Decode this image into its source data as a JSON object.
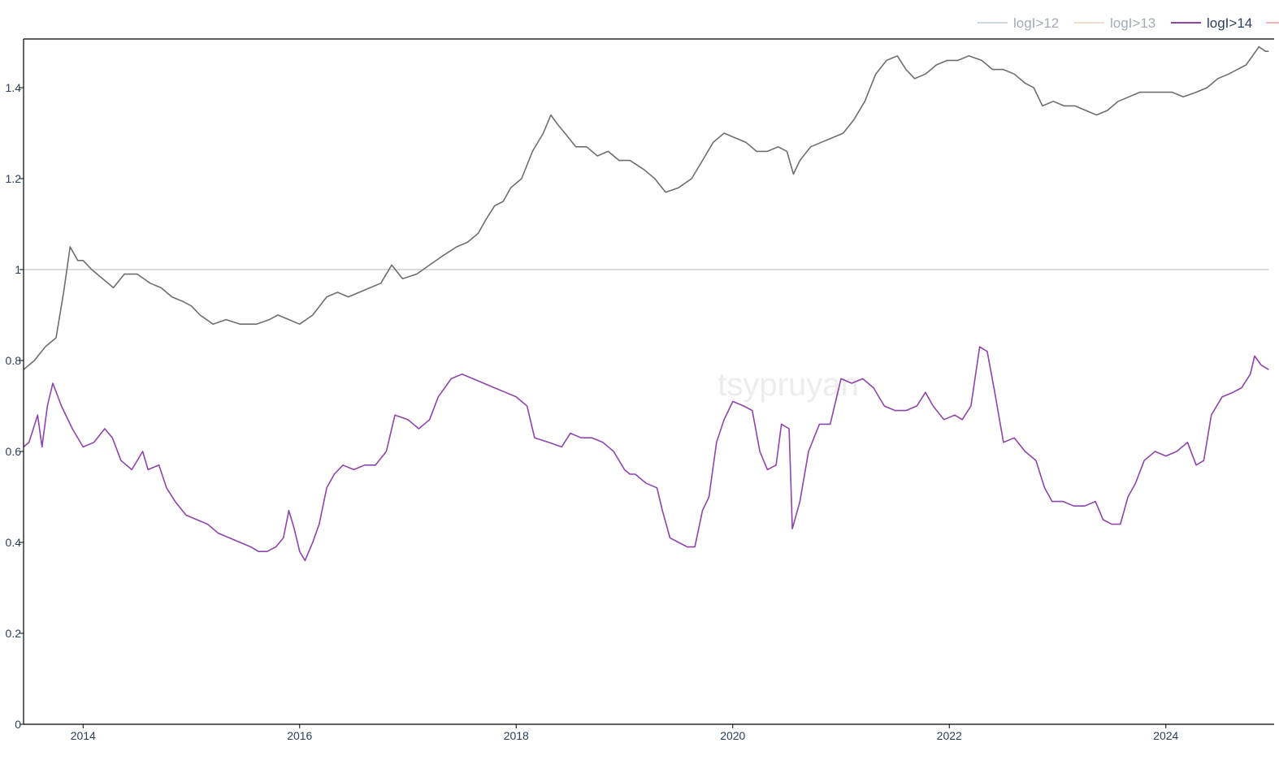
{
  "watermark": "tsypruyan",
  "colors": {
    "logI_gt_12": "#cfd6dc",
    "logI_gt_13": "#f1dfc9",
    "logI_gt_14": "#8e44ad",
    "price_ratio": "#6e6e6e",
    "reference_line": "#c8c8c8",
    "axis": "#000000",
    "legend_inactive_text": "#a3abb8",
    "legend_active_text": "#2a3f5f",
    "legend_cut_off_series": "#f2b6b6"
  },
  "legend": [
    {
      "label": "logI>12",
      "active": false,
      "color_key": "logI_gt_12"
    },
    {
      "label": "logI>13",
      "active": false,
      "color_key": "logI_gt_13"
    },
    {
      "label": "logI>14",
      "active": true,
      "color_key": "logI_gt_14"
    }
  ],
  "chart_data": {
    "type": "line",
    "title": "",
    "xlabel": "",
    "ylabel": "",
    "xlim": [
      2013.45,
      2025.0
    ],
    "ylim": [
      0,
      1.5
    ],
    "x_ticks": [
      {
        "value": 2014,
        "label": "2014"
      },
      {
        "value": 2016,
        "label": "2016"
      },
      {
        "value": 2018,
        "label": "2018"
      },
      {
        "value": 2020,
        "label": "2020"
      },
      {
        "value": 2022,
        "label": "2022"
      },
      {
        "value": 2024,
        "label": "2024"
      }
    ],
    "y_ticks": [
      {
        "value": 0,
        "label": "0"
      },
      {
        "value": 0.2,
        "label": "0.2"
      },
      {
        "value": 0.4,
        "label": "0.4"
      },
      {
        "value": 0.6,
        "label": "0.6"
      },
      {
        "value": 0.8,
        "label": "0.8"
      },
      {
        "value": 1.0,
        "label": "1"
      },
      {
        "value": 1.2,
        "label": "1.2"
      },
      {
        "value": 1.4,
        "label": "1.4"
      }
    ],
    "reference_line": {
      "y": 1.0
    },
    "series": [
      {
        "name": "logI>14",
        "color_key": "logI_gt_14",
        "points": [
          [
            2013.45,
            0.61
          ],
          [
            2013.5,
            0.62
          ],
          [
            2013.58,
            0.68
          ],
          [
            2013.62,
            0.61
          ],
          [
            2013.67,
            0.7
          ],
          [
            2013.72,
            0.75
          ],
          [
            2013.8,
            0.7
          ],
          [
            2013.9,
            0.65
          ],
          [
            2014.0,
            0.61
          ],
          [
            2014.1,
            0.62
          ],
          [
            2014.2,
            0.65
          ],
          [
            2014.27,
            0.63
          ],
          [
            2014.35,
            0.58
          ],
          [
            2014.45,
            0.56
          ],
          [
            2014.55,
            0.6
          ],
          [
            2014.6,
            0.56
          ],
          [
            2014.7,
            0.57
          ],
          [
            2014.77,
            0.52
          ],
          [
            2014.85,
            0.49
          ],
          [
            2014.95,
            0.46
          ],
          [
            2015.05,
            0.45
          ],
          [
            2015.15,
            0.44
          ],
          [
            2015.25,
            0.42
          ],
          [
            2015.35,
            0.41
          ],
          [
            2015.45,
            0.4
          ],
          [
            2015.55,
            0.39
          ],
          [
            2015.62,
            0.38
          ],
          [
            2015.7,
            0.38
          ],
          [
            2015.78,
            0.39
          ],
          [
            2015.85,
            0.41
          ],
          [
            2015.9,
            0.47
          ],
          [
            2015.95,
            0.43
          ],
          [
            2016.0,
            0.38
          ],
          [
            2016.05,
            0.36
          ],
          [
            2016.12,
            0.4
          ],
          [
            2016.18,
            0.44
          ],
          [
            2016.25,
            0.52
          ],
          [
            2016.32,
            0.55
          ],
          [
            2016.4,
            0.57
          ],
          [
            2016.5,
            0.56
          ],
          [
            2016.6,
            0.57
          ],
          [
            2016.7,
            0.57
          ],
          [
            2016.8,
            0.6
          ],
          [
            2016.88,
            0.68
          ],
          [
            2017.0,
            0.67
          ],
          [
            2017.1,
            0.65
          ],
          [
            2017.2,
            0.67
          ],
          [
            2017.28,
            0.72
          ],
          [
            2017.4,
            0.76
          ],
          [
            2017.5,
            0.77
          ],
          [
            2017.6,
            0.76
          ],
          [
            2017.7,
            0.75
          ],
          [
            2017.8,
            0.74
          ],
          [
            2017.9,
            0.73
          ],
          [
            2018.0,
            0.72
          ],
          [
            2018.1,
            0.7
          ],
          [
            2018.17,
            0.63
          ],
          [
            2018.3,
            0.62
          ],
          [
            2018.42,
            0.61
          ],
          [
            2018.5,
            0.64
          ],
          [
            2018.6,
            0.63
          ],
          [
            2018.7,
            0.63
          ],
          [
            2018.8,
            0.62
          ],
          [
            2018.9,
            0.6
          ],
          [
            2019.0,
            0.56
          ],
          [
            2019.05,
            0.55
          ],
          [
            2019.1,
            0.55
          ],
          [
            2019.2,
            0.53
          ],
          [
            2019.3,
            0.52
          ],
          [
            2019.35,
            0.47
          ],
          [
            2019.42,
            0.41
          ],
          [
            2019.5,
            0.4
          ],
          [
            2019.58,
            0.39
          ],
          [
            2019.65,
            0.39
          ],
          [
            2019.72,
            0.47
          ],
          [
            2019.78,
            0.5
          ],
          [
            2019.85,
            0.62
          ],
          [
            2019.92,
            0.67
          ],
          [
            2020.0,
            0.71
          ],
          [
            2020.1,
            0.7
          ],
          [
            2020.18,
            0.69
          ],
          [
            2020.25,
            0.6
          ],
          [
            2020.32,
            0.56
          ],
          [
            2020.4,
            0.57
          ],
          [
            2020.45,
            0.66
          ],
          [
            2020.52,
            0.65
          ],
          [
            2020.55,
            0.43
          ],
          [
            2020.62,
            0.49
          ],
          [
            2020.7,
            0.6
          ],
          [
            2020.8,
            0.66
          ],
          [
            2020.9,
            0.66
          ],
          [
            2021.0,
            0.76
          ],
          [
            2021.1,
            0.75
          ],
          [
            2021.2,
            0.76
          ],
          [
            2021.3,
            0.74
          ],
          [
            2021.4,
            0.7
          ],
          [
            2021.5,
            0.69
          ],
          [
            2021.6,
            0.69
          ],
          [
            2021.7,
            0.7
          ],
          [
            2021.78,
            0.73
          ],
          [
            2021.85,
            0.7
          ],
          [
            2021.95,
            0.67
          ],
          [
            2022.05,
            0.68
          ],
          [
            2022.12,
            0.67
          ],
          [
            2022.2,
            0.7
          ],
          [
            2022.28,
            0.83
          ],
          [
            2022.35,
            0.82
          ],
          [
            2022.42,
            0.73
          ],
          [
            2022.5,
            0.62
          ],
          [
            2022.6,
            0.63
          ],
          [
            2022.7,
            0.6
          ],
          [
            2022.8,
            0.58
          ],
          [
            2022.88,
            0.52
          ],
          [
            2022.95,
            0.49
          ],
          [
            2023.05,
            0.49
          ],
          [
            2023.15,
            0.48
          ],
          [
            2023.25,
            0.48
          ],
          [
            2023.35,
            0.49
          ],
          [
            2023.42,
            0.45
          ],
          [
            2023.5,
            0.44
          ],
          [
            2023.58,
            0.44
          ],
          [
            2023.65,
            0.5
          ],
          [
            2023.72,
            0.53
          ],
          [
            2023.8,
            0.58
          ],
          [
            2023.9,
            0.6
          ],
          [
            2024.0,
            0.59
          ],
          [
            2024.1,
            0.6
          ],
          [
            2024.2,
            0.62
          ],
          [
            2024.28,
            0.57
          ],
          [
            2024.35,
            0.58
          ],
          [
            2024.42,
            0.68
          ],
          [
            2024.52,
            0.72
          ],
          [
            2024.62,
            0.73
          ],
          [
            2024.7,
            0.74
          ],
          [
            2024.78,
            0.77
          ],
          [
            2024.82,
            0.81
          ],
          [
            2024.88,
            0.79
          ],
          [
            2024.95,
            0.78
          ]
        ]
      },
      {
        "name": "",
        "color_key": "price_ratio",
        "points": [
          [
            2013.45,
            0.78
          ],
          [
            2013.55,
            0.8
          ],
          [
            2013.65,
            0.83
          ],
          [
            2013.75,
            0.85
          ],
          [
            2013.82,
            0.95
          ],
          [
            2013.88,
            1.05
          ],
          [
            2013.95,
            1.02
          ],
          [
            2014.0,
            1.02
          ],
          [
            2014.08,
            1.0
          ],
          [
            2014.18,
            0.98
          ],
          [
            2014.28,
            0.96
          ],
          [
            2014.38,
            0.99
          ],
          [
            2014.5,
            0.99
          ],
          [
            2014.62,
            0.97
          ],
          [
            2014.72,
            0.96
          ],
          [
            2014.82,
            0.94
          ],
          [
            2014.92,
            0.93
          ],
          [
            2015.0,
            0.92
          ],
          [
            2015.08,
            0.9
          ],
          [
            2015.2,
            0.88
          ],
          [
            2015.32,
            0.89
          ],
          [
            2015.45,
            0.88
          ],
          [
            2015.6,
            0.88
          ],
          [
            2015.72,
            0.89
          ],
          [
            2015.8,
            0.9
          ],
          [
            2015.9,
            0.89
          ],
          [
            2016.0,
            0.88
          ],
          [
            2016.12,
            0.9
          ],
          [
            2016.25,
            0.94
          ],
          [
            2016.35,
            0.95
          ],
          [
            2016.45,
            0.94
          ],
          [
            2016.55,
            0.95
          ],
          [
            2016.65,
            0.96
          ],
          [
            2016.75,
            0.97
          ],
          [
            2016.85,
            1.01
          ],
          [
            2016.95,
            0.98
          ],
          [
            2017.08,
            0.99
          ],
          [
            2017.2,
            1.01
          ],
          [
            2017.32,
            1.03
          ],
          [
            2017.45,
            1.05
          ],
          [
            2017.55,
            1.06
          ],
          [
            2017.65,
            1.08
          ],
          [
            2017.72,
            1.11
          ],
          [
            2017.8,
            1.14
          ],
          [
            2017.88,
            1.15
          ],
          [
            2017.95,
            1.18
          ],
          [
            2018.05,
            1.2
          ],
          [
            2018.15,
            1.26
          ],
          [
            2018.25,
            1.3
          ],
          [
            2018.32,
            1.34
          ],
          [
            2018.38,
            1.32
          ],
          [
            2018.45,
            1.3
          ],
          [
            2018.55,
            1.27
          ],
          [
            2018.65,
            1.27
          ],
          [
            2018.75,
            1.25
          ],
          [
            2018.85,
            1.26
          ],
          [
            2018.95,
            1.24
          ],
          [
            2019.05,
            1.24
          ],
          [
            2019.18,
            1.22
          ],
          [
            2019.28,
            1.2
          ],
          [
            2019.38,
            1.17
          ],
          [
            2019.5,
            1.18
          ],
          [
            2019.62,
            1.2
          ],
          [
            2019.72,
            1.24
          ],
          [
            2019.82,
            1.28
          ],
          [
            2019.92,
            1.3
          ],
          [
            2020.02,
            1.29
          ],
          [
            2020.12,
            1.28
          ],
          [
            2020.22,
            1.26
          ],
          [
            2020.32,
            1.26
          ],
          [
            2020.42,
            1.27
          ],
          [
            2020.5,
            1.26
          ],
          [
            2020.56,
            1.21
          ],
          [
            2020.62,
            1.24
          ],
          [
            2020.72,
            1.27
          ],
          [
            2020.82,
            1.28
          ],
          [
            2020.92,
            1.29
          ],
          [
            2021.02,
            1.3
          ],
          [
            2021.12,
            1.33
          ],
          [
            2021.22,
            1.37
          ],
          [
            2021.32,
            1.43
          ],
          [
            2021.42,
            1.46
          ],
          [
            2021.52,
            1.47
          ],
          [
            2021.6,
            1.44
          ],
          [
            2021.68,
            1.42
          ],
          [
            2021.78,
            1.43
          ],
          [
            2021.88,
            1.45
          ],
          [
            2021.98,
            1.46
          ],
          [
            2022.08,
            1.46
          ],
          [
            2022.18,
            1.47
          ],
          [
            2022.3,
            1.46
          ],
          [
            2022.4,
            1.44
          ],
          [
            2022.5,
            1.44
          ],
          [
            2022.6,
            1.43
          ],
          [
            2022.7,
            1.41
          ],
          [
            2022.78,
            1.4
          ],
          [
            2022.86,
            1.36
          ],
          [
            2022.96,
            1.37
          ],
          [
            2023.06,
            1.36
          ],
          [
            2023.16,
            1.36
          ],
          [
            2023.26,
            1.35
          ],
          [
            2023.36,
            1.34
          ],
          [
            2023.46,
            1.35
          ],
          [
            2023.56,
            1.37
          ],
          [
            2023.66,
            1.38
          ],
          [
            2023.76,
            1.39
          ],
          [
            2023.86,
            1.39
          ],
          [
            2023.96,
            1.39
          ],
          [
            2024.06,
            1.39
          ],
          [
            2024.16,
            1.38
          ],
          [
            2024.28,
            1.39
          ],
          [
            2024.38,
            1.4
          ],
          [
            2024.48,
            1.42
          ],
          [
            2024.58,
            1.43
          ],
          [
            2024.66,
            1.44
          ],
          [
            2024.74,
            1.45
          ],
          [
            2024.8,
            1.47
          ],
          [
            2024.86,
            1.49
          ],
          [
            2024.92,
            1.48
          ],
          [
            2024.95,
            1.48
          ]
        ]
      }
    ]
  }
}
